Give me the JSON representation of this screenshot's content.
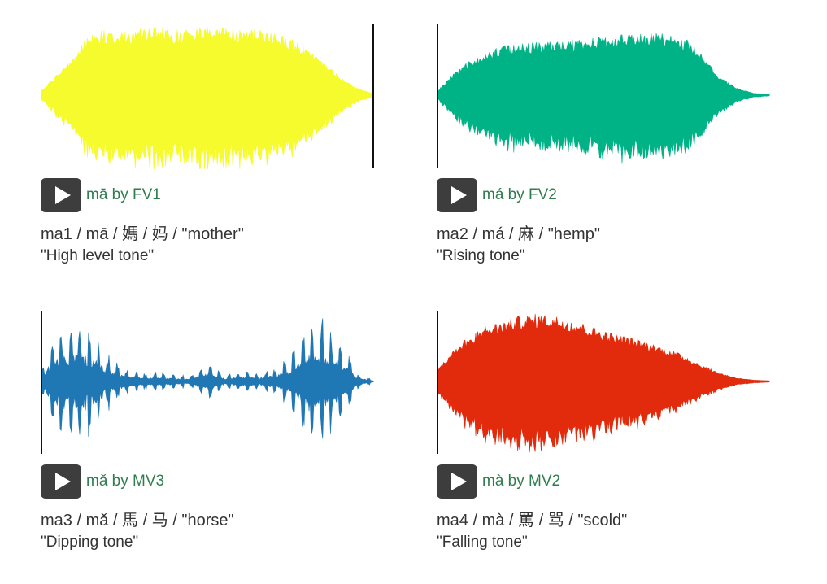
{
  "cards": [
    {
      "play_label": "mā by FV1",
      "description": "ma1 / mā / 媽 / 妈 / \"mother\"",
      "tone_name": "\"High level tone\"",
      "color": "#f5fb2d",
      "cursor_position": 1.0,
      "envelope": [
        0.05,
        0.3,
        0.55,
        0.9,
        0.92,
        0.9,
        0.93,
        0.95,
        0.92,
        0.94,
        0.96,
        0.95,
        0.93,
        0.92,
        0.88,
        0.8,
        0.65,
        0.45,
        0.25,
        0.1,
        0.02
      ],
      "style": "dense"
    },
    {
      "play_label": "má by FV2",
      "description": "ma2 / má / 麻 / \"hemp\"",
      "tone_name": "\"Rising tone\"",
      "color": "#00b386",
      "cursor_position": 0.0,
      "envelope": [
        0.05,
        0.3,
        0.5,
        0.6,
        0.7,
        0.72,
        0.74,
        0.76,
        0.78,
        0.8,
        0.82,
        0.85,
        0.87,
        0.88,
        0.85,
        0.78,
        0.55,
        0.25,
        0.1,
        0.03,
        0.01
      ],
      "style": "dense"
    },
    {
      "play_label": "mǎ by MV3",
      "description": "ma3 / mǎ / 馬 / 马 / \"horse\"",
      "tone_name": "\"Dipping tone\"",
      "color": "#1f77b4",
      "cursor_position": 0.0,
      "envelope": [
        0.2,
        0.75,
        0.85,
        0.8,
        0.4,
        0.18,
        0.12,
        0.14,
        0.1,
        0.08,
        0.28,
        0.1,
        0.15,
        0.12,
        0.2,
        0.35,
        0.85,
        0.9,
        0.65,
        0.12,
        0.02
      ],
      "style": "spiky"
    },
    {
      "play_label": "mà by MV2",
      "description": "ma4 / mà / 罵 / 骂 / \"scold\"",
      "tone_name": "\"Falling tone\"",
      "color": "#e22b0c",
      "cursor_position": 0.0,
      "envelope": [
        0.15,
        0.45,
        0.65,
        0.78,
        0.85,
        0.92,
        0.95,
        0.93,
        0.88,
        0.8,
        0.72,
        0.65,
        0.6,
        0.52,
        0.45,
        0.35,
        0.22,
        0.12,
        0.05,
        0.02,
        0.01
      ],
      "style": "dense"
    }
  ]
}
